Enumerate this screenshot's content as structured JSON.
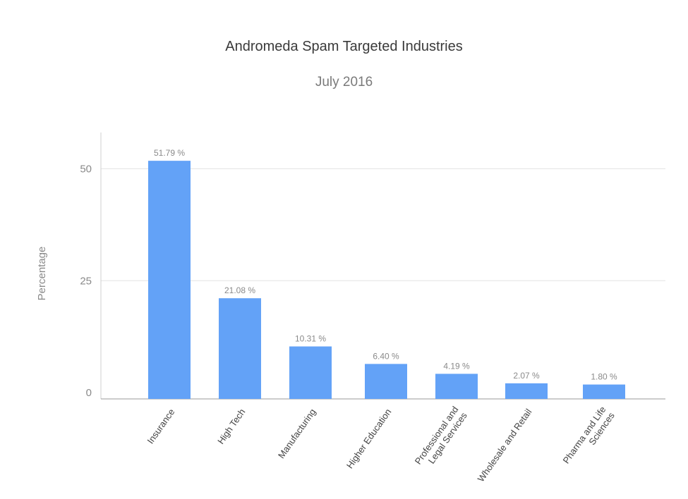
{
  "chart_data": {
    "type": "bar",
    "title": "Andromeda Spam Targeted Industries",
    "subtitle": "July 2016",
    "ylabel": "Percentage",
    "xlabel": "",
    "ylim": [
      0,
      60
    ],
    "yticks": [
      0,
      25,
      50
    ],
    "grid": true,
    "bar_color": "#63a2f7",
    "categories": [
      [
        "Insurance"
      ],
      [
        "High Tech"
      ],
      [
        "Manufacturing"
      ],
      [
        "Higher Education"
      ],
      [
        "Professional and",
        "Legal Services"
      ],
      [
        "Wholesale and Retail"
      ],
      [
        "Pharma and Life",
        "Sciences"
      ]
    ],
    "values": [
      51.79,
      21.08,
      10.31,
      6.4,
      4.19,
      2.07,
      1.8
    ],
    "data_labels": [
      "51.79 %",
      "21.08 %",
      "10.31 %",
      "6.40 %",
      "4.19 %",
      "2.07 %",
      "1.80 %"
    ]
  }
}
